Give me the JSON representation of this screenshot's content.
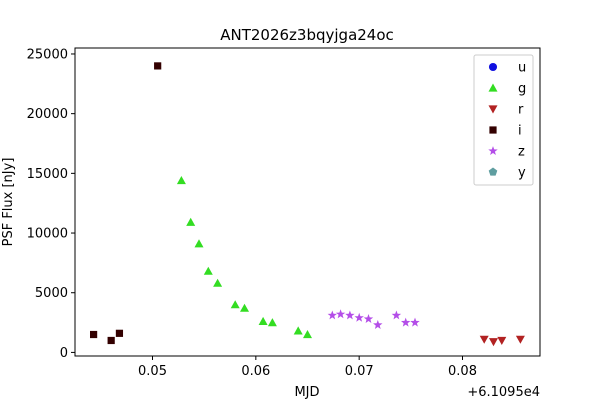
{
  "chart_data": {
    "type": "scatter",
    "title": "ANT2026z3bqyjga24oc",
    "xlabel": "MJD",
    "ylabel": "PSF Flux [nJy]",
    "x_offset_label": "+6.1095e4",
    "xlim": [
      0.0425,
      0.0875
    ],
    "ylim": [
      -300,
      25500
    ],
    "xticks": [
      0.05,
      0.06,
      0.07,
      0.08
    ],
    "xtick_labels": [
      "0.05",
      "0.06",
      "0.07",
      "0.08"
    ],
    "yticks": [
      0,
      5000,
      10000,
      15000,
      20000,
      25000
    ],
    "ytick_labels": [
      "0",
      "5000",
      "10000",
      "15000",
      "20000",
      "25000"
    ],
    "grid": false,
    "legend_position": "top-right",
    "series": [
      {
        "name": "u",
        "marker": "circle",
        "color": "#1010e0",
        "points": []
      },
      {
        "name": "g",
        "marker": "triangle-up",
        "color": "#33dd22",
        "points": [
          {
            "x": 0.0528,
            "y": 14400
          },
          {
            "x": 0.0537,
            "y": 10900
          },
          {
            "x": 0.0545,
            "y": 9100
          },
          {
            "x": 0.0554,
            "y": 6800
          },
          {
            "x": 0.0563,
            "y": 5800
          },
          {
            "x": 0.058,
            "y": 4000
          },
          {
            "x": 0.0589,
            "y": 3700
          },
          {
            "x": 0.0607,
            "y": 2600
          },
          {
            "x": 0.0616,
            "y": 2500
          },
          {
            "x": 0.0641,
            "y": 1800
          },
          {
            "x": 0.065,
            "y": 1500
          }
        ]
      },
      {
        "name": "r",
        "marker": "triangle-down",
        "color": "#b22222",
        "points": [
          {
            "x": 0.0821,
            "y": 1100
          },
          {
            "x": 0.083,
            "y": 900
          },
          {
            "x": 0.0838,
            "y": 1000
          },
          {
            "x": 0.0856,
            "y": 1100
          }
        ]
      },
      {
        "name": "i",
        "marker": "square",
        "color": "#330000",
        "points": [
          {
            "x": 0.0443,
            "y": 1500
          },
          {
            "x": 0.046,
            "y": 1000
          },
          {
            "x": 0.0468,
            "y": 1600
          },
          {
            "x": 0.0505,
            "y": 24000
          }
        ]
      },
      {
        "name": "z",
        "marker": "star",
        "color": "#b44ee8",
        "points": [
          {
            "x": 0.0674,
            "y": 3100
          },
          {
            "x": 0.0682,
            "y": 3200
          },
          {
            "x": 0.0691,
            "y": 3100
          },
          {
            "x": 0.07,
            "y": 2900
          },
          {
            "x": 0.0709,
            "y": 2800
          },
          {
            "x": 0.0718,
            "y": 2300
          },
          {
            "x": 0.0736,
            "y": 3100
          },
          {
            "x": 0.0745,
            "y": 2500
          },
          {
            "x": 0.0754,
            "y": 2500
          }
        ]
      },
      {
        "name": "y",
        "marker": "pentagon",
        "color": "#5f9ea0",
        "points": []
      }
    ]
  }
}
